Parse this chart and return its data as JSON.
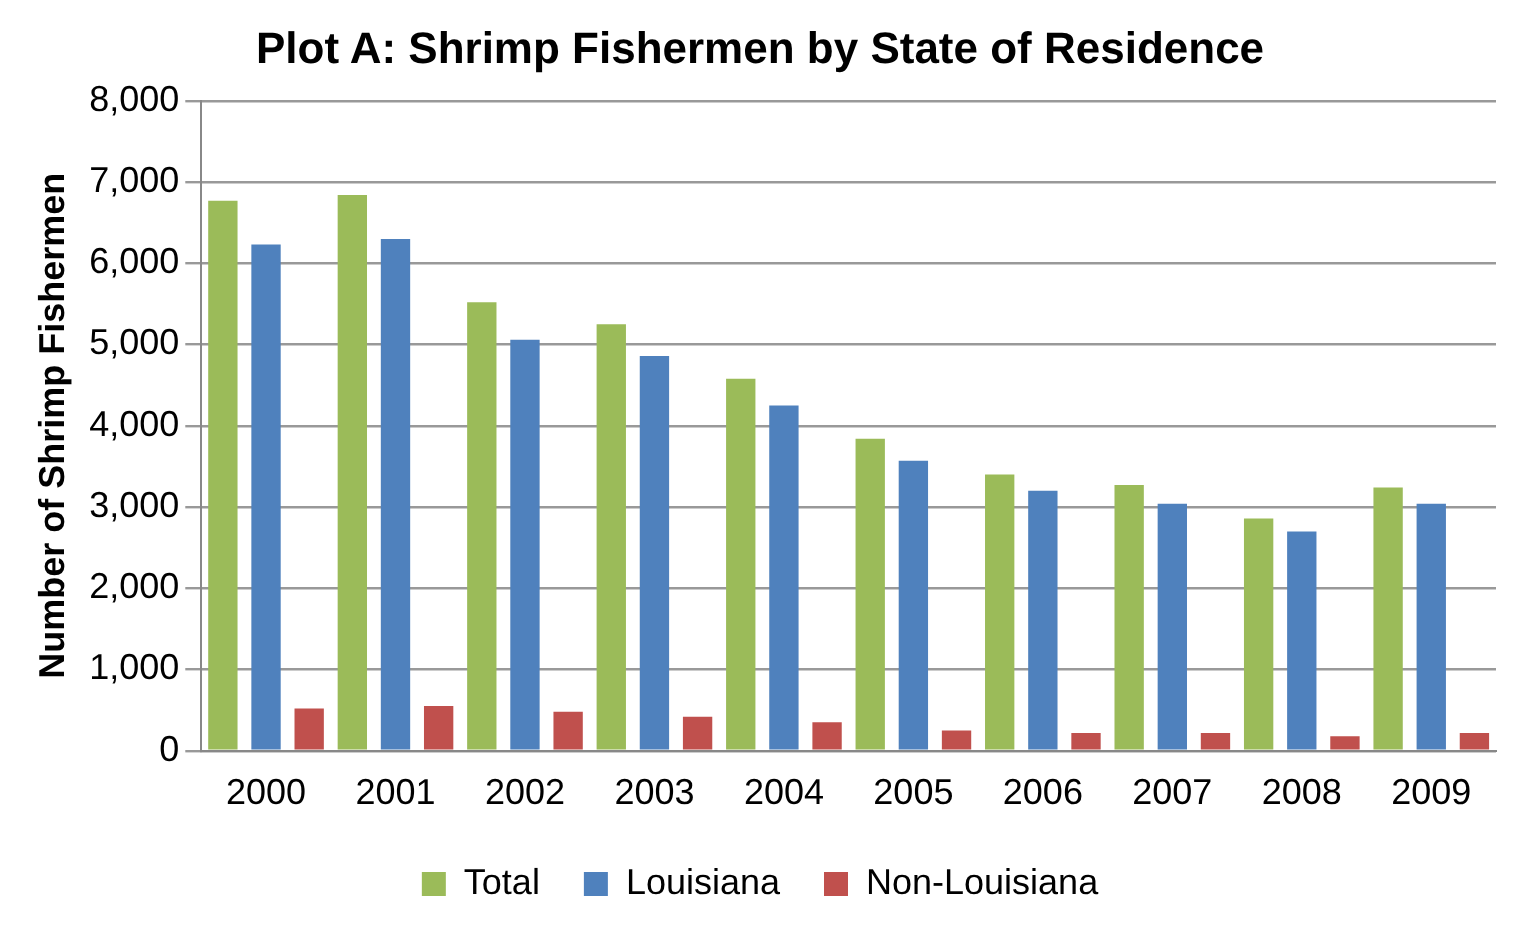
{
  "chart_data": {
    "type": "bar",
    "title": "Plot A: Shrimp Fishermen by State of Residence",
    "ylabel": "Number of Shrimp Fishermen",
    "categories": [
      "2000",
      "2001",
      "2002",
      "2003",
      "2004",
      "2005",
      "2006",
      "2007",
      "2008",
      "2009"
    ],
    "series": [
      {
        "name": "Total",
        "color": "#9bbb59",
        "values": [
          6770,
          6840,
          5520,
          5250,
          4580,
          3840,
          3400,
          3270,
          2860,
          3240
        ]
      },
      {
        "name": "Louisiana",
        "color": "#4f81bd",
        "values": [
          6230,
          6300,
          5060,
          4860,
          4250,
          3570,
          3200,
          3040,
          2700,
          3040
        ]
      },
      {
        "name": "Non-Louisiana",
        "color": "#c0504d",
        "values": [
          520,
          550,
          480,
          420,
          350,
          250,
          220,
          220,
          180,
          220
        ]
      }
    ],
    "ylim": [
      0,
      8000
    ],
    "yticks": [
      {
        "value": 0,
        "label": "0"
      },
      {
        "value": 1000,
        "label": "1,000"
      },
      {
        "value": 2000,
        "label": "2,000"
      },
      {
        "value": 3000,
        "label": "3,000"
      },
      {
        "value": 4000,
        "label": "4,000"
      },
      {
        "value": 5000,
        "label": "5,000"
      },
      {
        "value": 6000,
        "label": "6,000"
      },
      {
        "value": 7000,
        "label": "7,000"
      },
      {
        "value": 8000,
        "label": "8,000"
      }
    ],
    "grid": "y",
    "legend": "bottom"
  }
}
